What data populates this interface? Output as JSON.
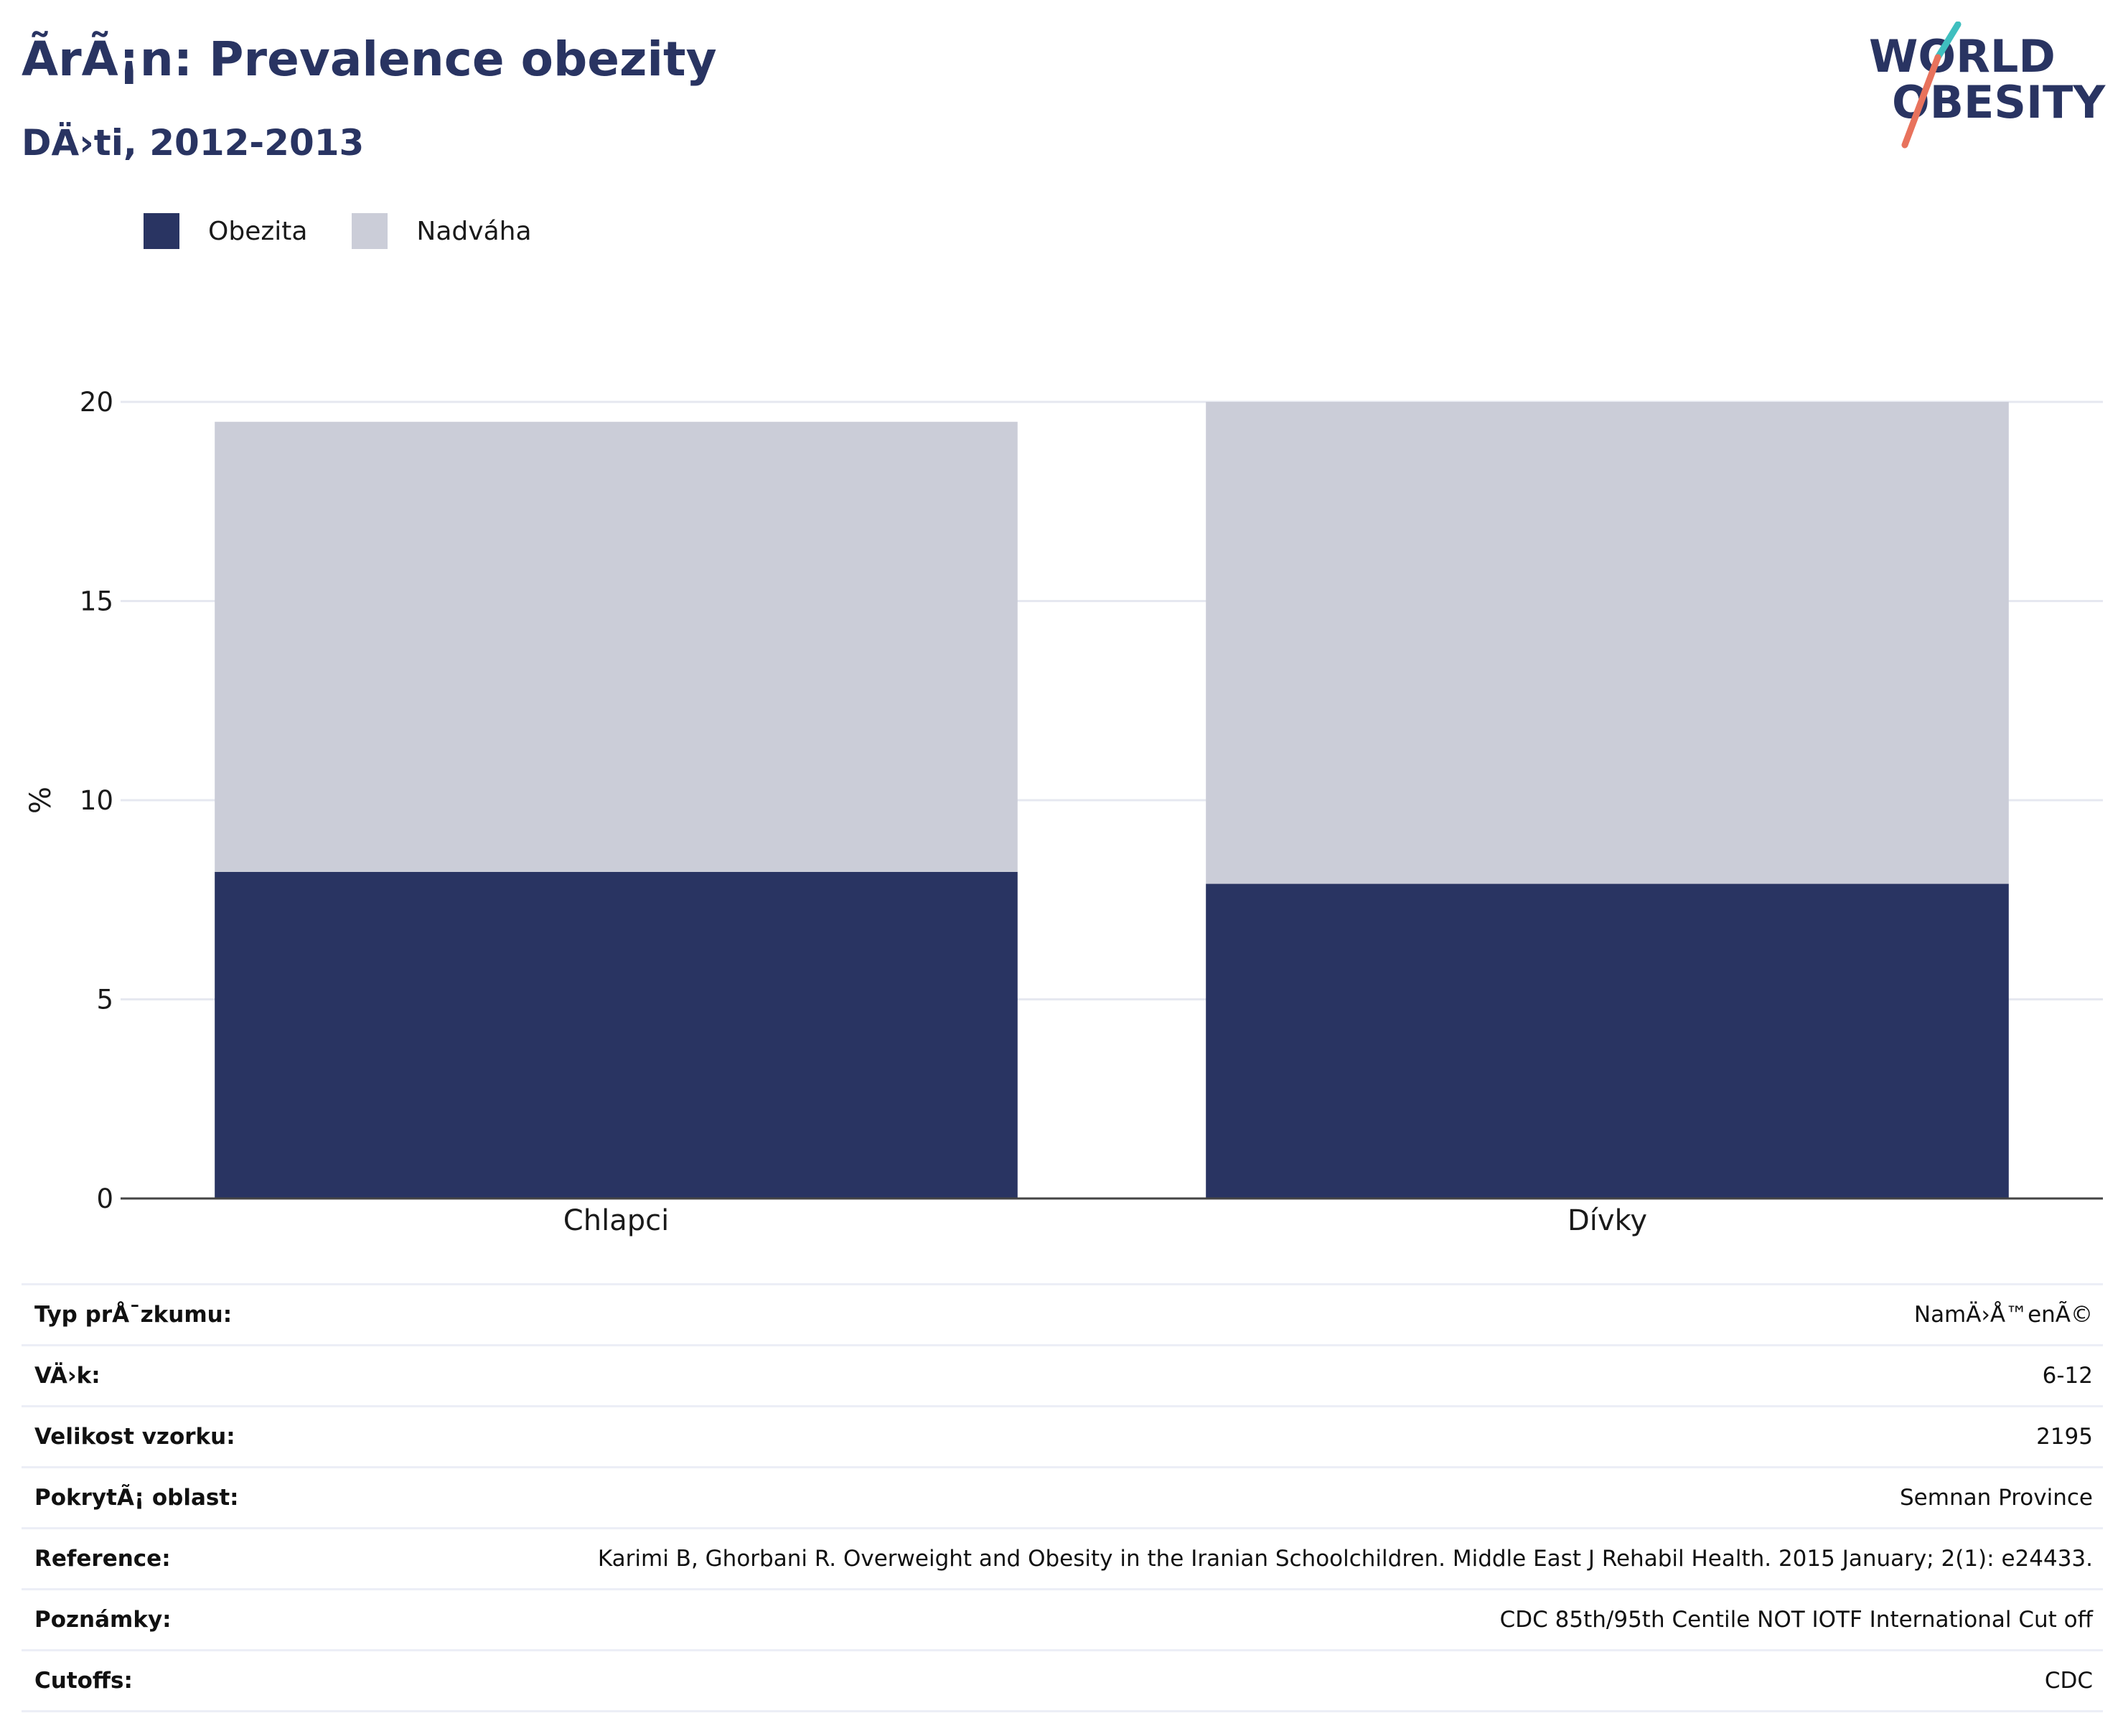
{
  "title": "Ã­rÃ¡n: Prevalence obezity",
  "subtitle": "DÄ›ti, 2012-2013",
  "logo": {
    "line1": "WORLD",
    "line2": "OBESITY"
  },
  "colors": {
    "obesity": "#293462",
    "overweight": "#cbcdd8",
    "accent_teal": "#3fbfbf",
    "accent_coral": "#e8725c"
  },
  "legend": [
    {
      "label": "Obezita",
      "color": "#293462"
    },
    {
      "label": "Nadváha",
      "color": "#cbcdd8"
    }
  ],
  "chart_data": {
    "type": "bar",
    "stacked": true,
    "categories": [
      "Chlapci",
      "Dívky"
    ],
    "series": [
      {
        "name": "Obezita",
        "values": [
          8.2,
          7.9
        ]
      },
      {
        "name": "Nadváha",
        "values": [
          11.3,
          12.1
        ]
      }
    ],
    "ylabel": "%",
    "ylim": [
      0,
      20
    ],
    "yticks": [
      0,
      5,
      10,
      15,
      20
    ],
    "grid": true,
    "legend_position": "top-left"
  },
  "info": [
    {
      "label": "Typ prÅ¯zkumu:",
      "value": "NamÄ›Å™enÃ©"
    },
    {
      "label": "VÄ›k:",
      "value": "6-12"
    },
    {
      "label": "Velikost vzorku:",
      "value": "2195"
    },
    {
      "label": "PokrytÃ¡ oblast:",
      "value": "Semnan Province"
    },
    {
      "label": "Reference:",
      "value": "Karimi B, Ghorbani R. Overweight and Obesity in the Iranian Schoolchildren. Middle East J Rehabil Health. 2015 January; 2(1): e24433."
    },
    {
      "label": "Poznámky:",
      "value": "CDC 85th/95th Centile NOT IOTF International Cut off"
    },
    {
      "label": "Cutoffs:",
      "value": "CDC"
    }
  ]
}
